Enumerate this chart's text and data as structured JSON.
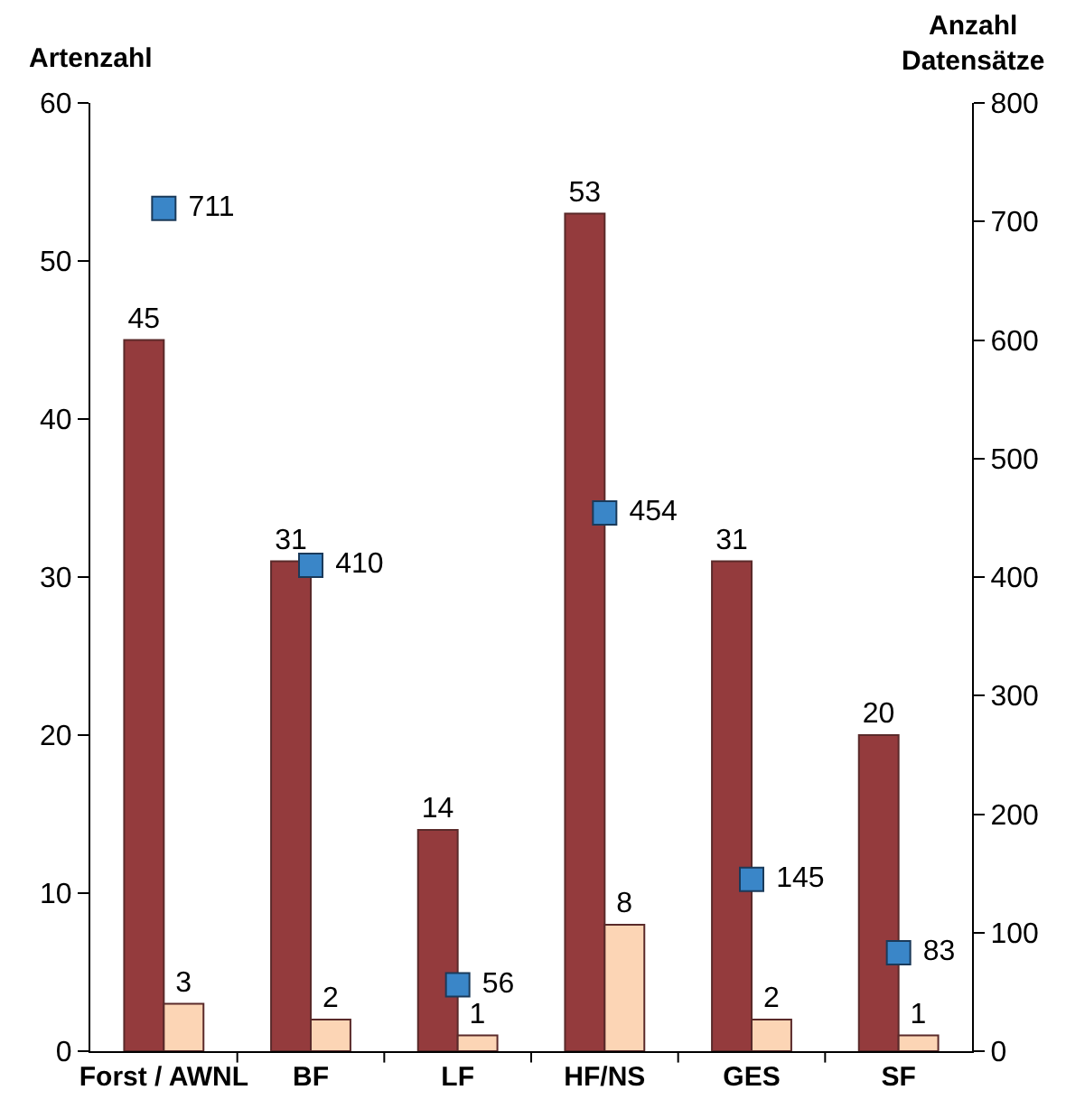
{
  "chart_data": {
    "type": "bar",
    "categories": [
      "Forst / AWNL",
      "BF",
      "LF",
      "HF/NS",
      "GES",
      "SF"
    ],
    "ylabel": "Artenzahl",
    "y2label": "Anzahl\nDatensätze",
    "series": [
      {
        "type": "bar",
        "color": "#943b3d",
        "values": [
          45,
          31,
          14,
          53,
          31,
          20
        ]
      },
      {
        "type": "bar",
        "color": "#fcd5b5",
        "values": [
          3,
          2,
          1,
          8,
          2,
          1
        ]
      },
      {
        "type": "scatter",
        "axis": "y2",
        "color": "#3a86c8",
        "values": [
          711,
          410,
          56,
          454,
          145,
          83
        ]
      }
    ],
    "ylim": [
      0,
      60
    ],
    "yticks": [
      0,
      10,
      20,
      30,
      40,
      50,
      60
    ],
    "y2lim": [
      0,
      800
    ],
    "y2ticks": [
      0,
      100,
      200,
      300,
      400,
      500,
      600,
      700,
      800
    ],
    "data_labels": true,
    "marker": "square",
    "grid": false,
    "legend": false
  }
}
